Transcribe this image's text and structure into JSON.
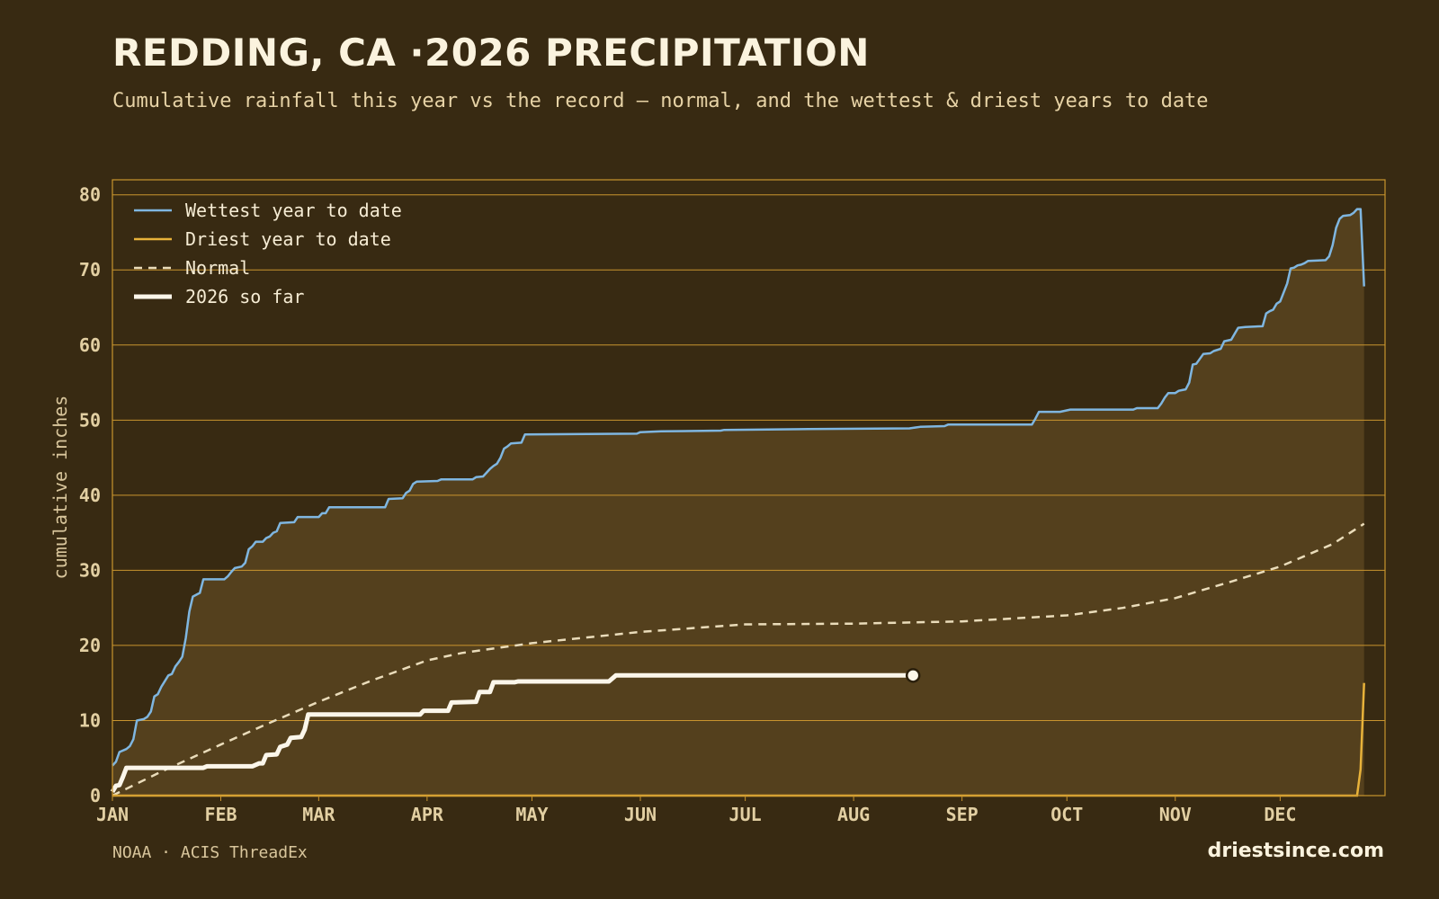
{
  "page": {
    "title": "REDDING, CA ·2026 PRECIPITATION",
    "subtitle": "Cumulative rainfall this year vs the record — normal, and the wettest & driest years to date",
    "source": "NOAA · ACIS ThreadEx",
    "brand": "driestsince.com"
  },
  "colors": {
    "background": "#382a12",
    "plot_background": "#382a12",
    "fill_area": "#54401d",
    "grid": "#c9942e",
    "wettest": "#7fb6e0",
    "driest": "#e8b23a",
    "normal": "#eadcba",
    "current": "#fbf6ea"
  },
  "chart_data": {
    "type": "line",
    "title": "REDDING, CA ·2026 PRECIPITATION",
    "subtitle": "Cumulative rainfall this year vs the record — normal, and the wettest & driest years to date",
    "xlabel": "",
    "ylabel": "cumulative inches",
    "xlim": [
      1,
      365
    ],
    "ylim": [
      0,
      82
    ],
    "yticks": [
      0,
      10,
      20,
      30,
      40,
      50,
      60,
      70,
      80
    ],
    "x_ticks": [
      {
        "label": "JAN",
        "day": 1
      },
      {
        "label": "FEB",
        "day": 32
      },
      {
        "label": "MAR",
        "day": 60
      },
      {
        "label": "APR",
        "day": 91
      },
      {
        "label": "MAY",
        "day": 121
      },
      {
        "label": "JUN",
        "day": 152
      },
      {
        "label": "JUL",
        "day": 182
      },
      {
        "label": "AUG",
        "day": 213
      },
      {
        "label": "SEP",
        "day": 244
      },
      {
        "label": "OCT",
        "day": 274
      },
      {
        "label": "NOV",
        "day": 305
      },
      {
        "label": "DEC",
        "day": 335
      }
    ],
    "grid": true,
    "legend_position": "top-left",
    "series": [
      {
        "name": "Wettest year to date",
        "style": "solid",
        "points": [
          [
            1,
            4
          ],
          [
            2,
            4.5
          ],
          [
            3,
            5.8
          ],
          [
            5,
            6.2
          ],
          [
            6,
            6.6
          ],
          [
            7,
            7.5
          ],
          [
            8,
            10
          ],
          [
            10,
            10.2
          ],
          [
            11,
            10.5
          ],
          [
            12,
            11.2
          ],
          [
            13,
            13.2
          ],
          [
            14,
            13.5
          ],
          [
            15,
            14.5
          ],
          [
            17,
            16
          ],
          [
            18,
            16.2
          ],
          [
            19,
            17.2
          ],
          [
            20,
            17.8
          ],
          [
            21,
            18.5
          ],
          [
            22,
            21
          ],
          [
            23,
            24.5
          ],
          [
            24,
            26.5
          ],
          [
            26,
            27
          ],
          [
            27,
            28.8
          ],
          [
            33,
            28.8
          ],
          [
            34,
            29.2
          ],
          [
            35,
            29.8
          ],
          [
            36,
            30.3
          ],
          [
            38,
            30.5
          ],
          [
            39,
            31
          ],
          [
            40,
            32.8
          ],
          [
            41,
            33.2
          ],
          [
            42,
            33.8
          ],
          [
            44,
            33.8
          ],
          [
            45,
            34.3
          ],
          [
            46,
            34.5
          ],
          [
            47,
            35
          ],
          [
            48,
            35.2
          ],
          [
            49,
            36.3
          ],
          [
            53,
            36.4
          ],
          [
            54,
            37.1
          ],
          [
            60,
            37.1
          ],
          [
            61,
            37.6
          ],
          [
            62,
            37.6
          ],
          [
            63,
            38.4
          ],
          [
            79,
            38.4
          ],
          [
            80,
            39.5
          ],
          [
            84,
            39.6
          ],
          [
            85,
            40.3
          ],
          [
            86,
            40.6
          ],
          [
            87,
            41.5
          ],
          [
            88,
            41.8
          ],
          [
            94,
            41.9
          ],
          [
            95,
            42.1
          ],
          [
            104,
            42.1
          ],
          [
            105,
            42.4
          ],
          [
            107,
            42.5
          ],
          [
            109,
            43.5
          ],
          [
            110,
            43.9
          ],
          [
            111,
            44.2
          ],
          [
            112,
            45
          ],
          [
            113,
            46.2
          ],
          [
            114,
            46.5
          ],
          [
            115,
            46.9
          ],
          [
            118,
            47
          ],
          [
            119,
            48.1
          ],
          [
            151,
            48.2
          ],
          [
            152,
            48.4
          ],
          [
            158,
            48.5
          ],
          [
            175,
            48.6
          ],
          [
            176,
            48.7
          ],
          [
            200,
            48.8
          ],
          [
            229,
            48.9
          ],
          [
            232,
            49.1
          ],
          [
            239,
            49.2
          ],
          [
            240,
            49.4
          ],
          [
            264,
            49.4
          ],
          [
            265,
            50.2
          ],
          [
            266,
            51.1
          ],
          [
            272,
            51.1
          ],
          [
            275,
            51.4
          ],
          [
            293,
            51.4
          ],
          [
            294,
            51.6
          ],
          [
            300,
            51.6
          ],
          [
            301,
            52.2
          ],
          [
            302,
            53
          ],
          [
            303,
            53.6
          ],
          [
            305,
            53.6
          ],
          [
            306,
            53.9
          ],
          [
            307,
            54
          ],
          [
            308,
            54.1
          ],
          [
            309,
            55
          ],
          [
            310,
            57.4
          ],
          [
            311,
            57.5
          ],
          [
            313,
            58.8
          ],
          [
            315,
            58.9
          ],
          [
            316,
            59.2
          ],
          [
            318,
            59.5
          ],
          [
            319,
            60.5
          ],
          [
            321,
            60.7
          ],
          [
            322,
            61.5
          ],
          [
            323,
            62.3
          ],
          [
            325,
            62.4
          ],
          [
            330,
            62.5
          ],
          [
            331,
            64.2
          ],
          [
            332,
            64.5
          ],
          [
            333,
            64.7
          ],
          [
            334,
            65.5
          ],
          [
            335,
            65.8
          ],
          [
            336,
            67
          ],
          [
            337,
            68.2
          ],
          [
            338,
            70.2
          ],
          [
            339,
            70.3
          ],
          [
            340,
            70.6
          ],
          [
            341,
            70.7
          ],
          [
            342,
            70.9
          ],
          [
            343,
            71.2
          ],
          [
            348,
            71.3
          ],
          [
            349,
            71.8
          ],
          [
            350,
            73.3
          ],
          [
            351,
            75.6
          ],
          [
            352,
            76.8
          ],
          [
            353,
            77.2
          ],
          [
            355,
            77.3
          ],
          [
            356,
            77.6
          ],
          [
            357,
            78.1
          ],
          [
            358,
            78.1
          ],
          [
            359,
            67.8
          ]
        ]
      },
      {
        "name": "Driest year to date",
        "style": "solid",
        "points": [
          [
            1,
            0
          ],
          [
            357,
            0
          ],
          [
            358,
            3.5
          ],
          [
            359,
            15
          ]
        ]
      },
      {
        "name": "Normal",
        "style": "dashed",
        "points": [
          [
            1,
            0
          ],
          [
            15,
            3.2
          ],
          [
            32,
            6.8
          ],
          [
            46,
            9.7
          ],
          [
            60,
            12.5
          ],
          [
            75,
            15.3
          ],
          [
            91,
            18
          ],
          [
            101,
            19
          ],
          [
            121,
            20.3
          ],
          [
            152,
            21.8
          ],
          [
            182,
            22.8
          ],
          [
            213,
            22.9
          ],
          [
            244,
            23.2
          ],
          [
            274,
            24
          ],
          [
            290,
            25
          ],
          [
            305,
            26.3
          ],
          [
            321,
            28.5
          ],
          [
            335,
            30.5
          ],
          [
            350,
            33.5
          ],
          [
            359,
            36.2
          ]
        ]
      },
      {
        "name": "2026 so far",
        "style": "solid-thick",
        "points": [
          [
            1,
            0.5
          ],
          [
            2,
            1.3
          ],
          [
            3,
            1.4
          ],
          [
            4,
            2.5
          ],
          [
            5,
            3.7
          ],
          [
            27,
            3.7
          ],
          [
            28,
            3.9
          ],
          [
            41,
            3.9
          ],
          [
            43,
            4.3
          ],
          [
            44,
            4.3
          ],
          [
            45,
            5.4
          ],
          [
            48,
            5.5
          ],
          [
            49,
            6.5
          ],
          [
            51,
            6.8
          ],
          [
            52,
            7.7
          ],
          [
            55,
            7.8
          ],
          [
            56,
            8.8
          ],
          [
            57,
            10.8
          ],
          [
            89,
            10.8
          ],
          [
            90,
            11.3
          ],
          [
            97,
            11.3
          ],
          [
            98,
            12.4
          ],
          [
            105,
            12.5
          ],
          [
            106,
            13.8
          ],
          [
            109,
            13.8
          ],
          [
            110,
            15.1
          ],
          [
            116,
            15.1
          ],
          [
            117,
            15.2
          ],
          [
            143,
            15.2
          ],
          [
            145,
            16
          ],
          [
            230,
            16
          ]
        ]
      }
    ]
  }
}
